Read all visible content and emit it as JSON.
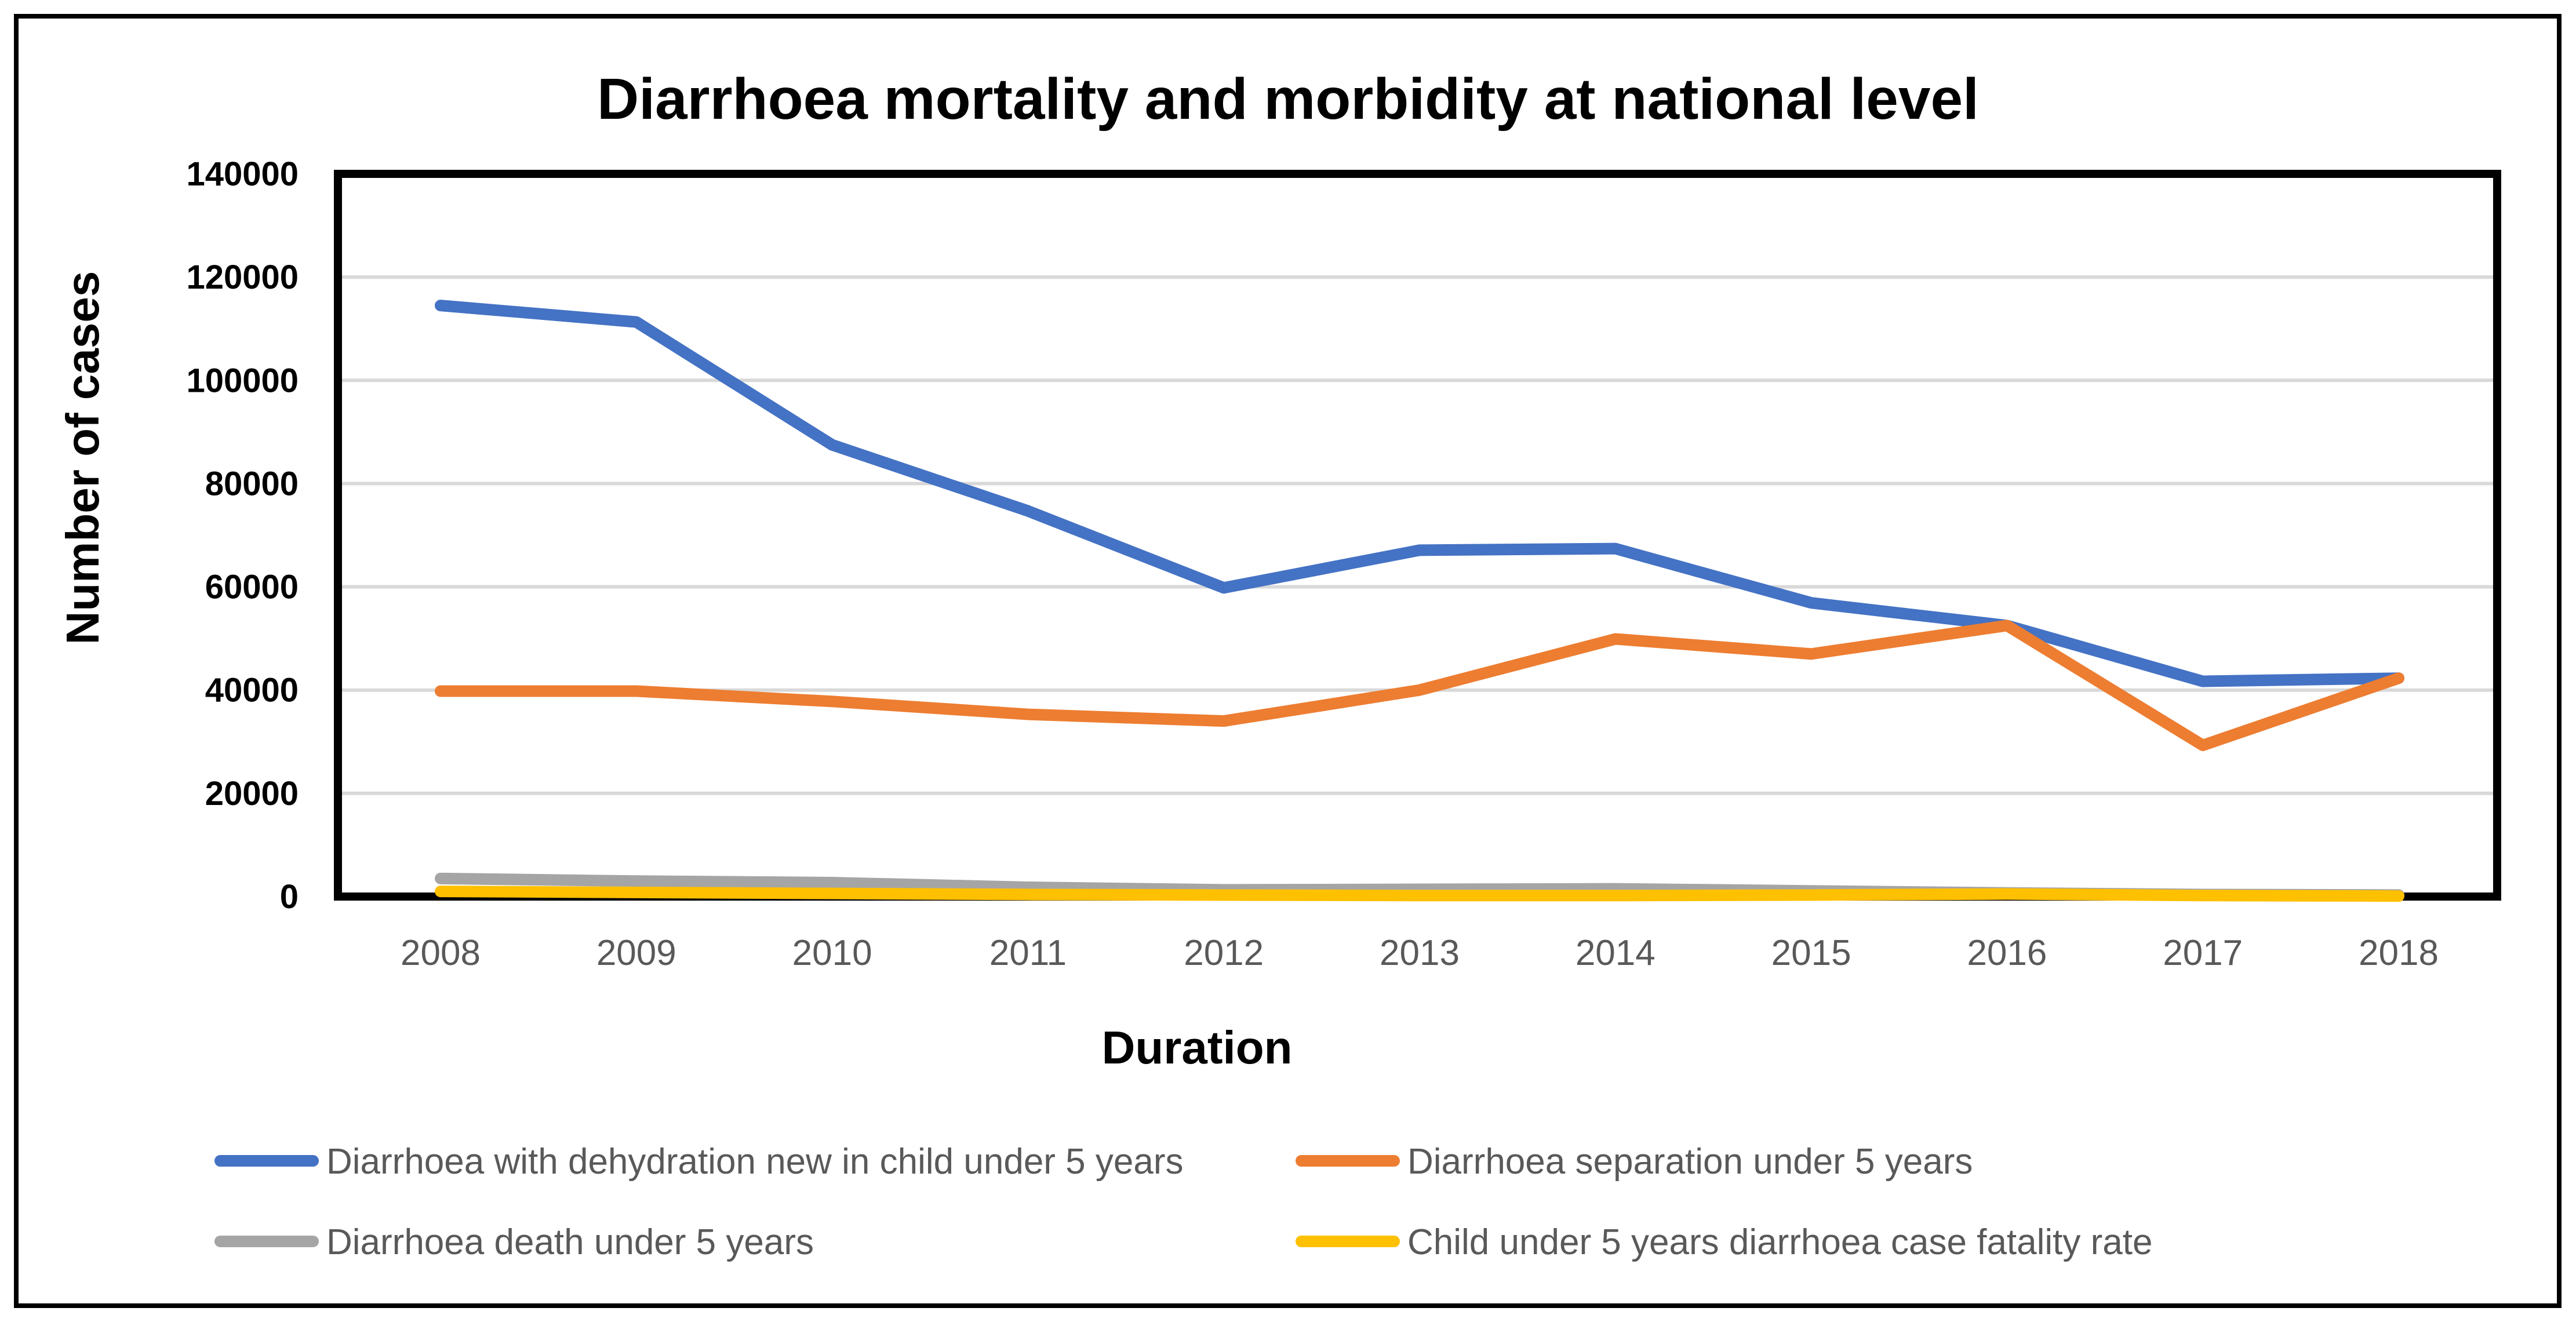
{
  "chart_data": {
    "type": "line",
    "title": "Diarrhoea mortality and morbidity at national level",
    "xlabel": "Duration",
    "ylabel": "Number of cases",
    "ylim": [
      0,
      140000
    ],
    "yticks": [
      "0",
      "20000",
      "40000",
      "60000",
      "80000",
      "100000",
      "120000",
      "140000"
    ],
    "grid": true,
    "legend_placement": "bottom",
    "categories": [
      "2008",
      "2009",
      "2010",
      "2011",
      "2012",
      "2013",
      "2014",
      "2015",
      "2016",
      "2017",
      "2018"
    ],
    "series": [
      {
        "name": "Diarrhoea with dehydration new in child under 5 years",
        "color": "#4472C4",
        "values": [
          114500,
          111300,
          87500,
          74700,
          59800,
          67100,
          67400,
          56900,
          52500,
          41700,
          42300
        ]
      },
      {
        "name": "Diarrhoea separation under 5 years",
        "color": "#ED7D31",
        "values": [
          39800,
          39800,
          37800,
          35300,
          34000,
          40000,
          49900,
          47000,
          52500,
          29300,
          42300
        ]
      },
      {
        "name": "Diarrhoea death under 5 years",
        "color": "#A5A5A5",
        "values": [
          3500,
          3000,
          2700,
          1800,
          1300,
          1400,
          1500,
          1100,
          700,
          400,
          300
        ]
      },
      {
        "name": "Child under 5 years diarrhoea case fatality rate",
        "color": "#FFC000",
        "values": [
          1000,
          800,
          600,
          400,
          300,
          200,
          200,
          300,
          500,
          200,
          100
        ]
      }
    ]
  }
}
